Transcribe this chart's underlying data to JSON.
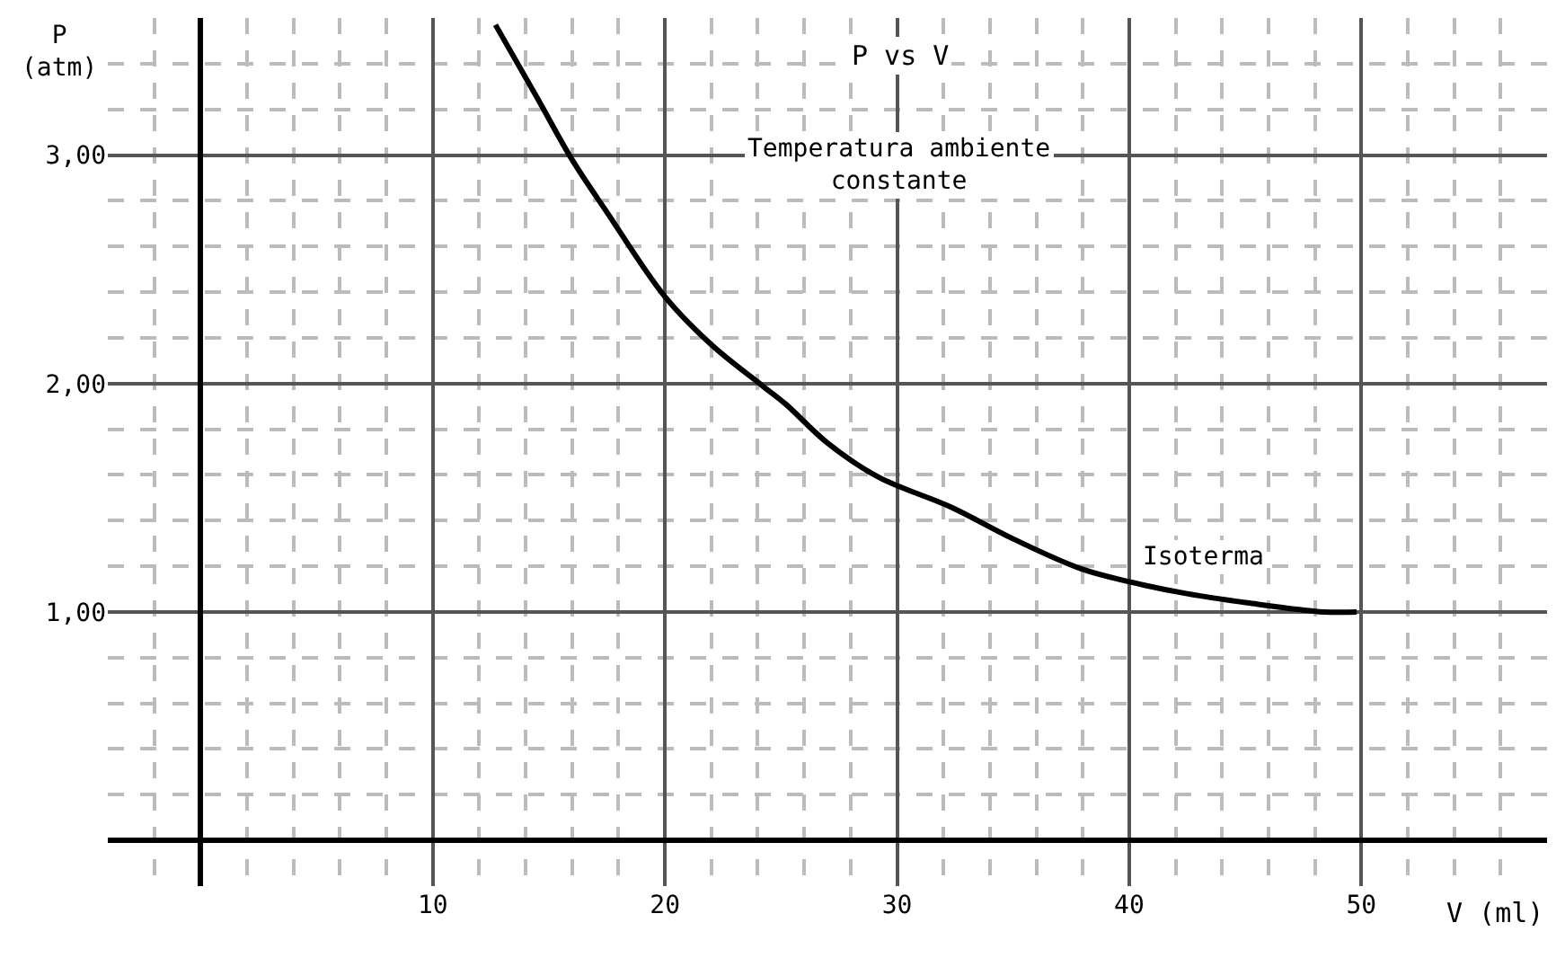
{
  "chart_data": {
    "type": "line",
    "title": "P vs V",
    "subtitle": "Temperatura ambiente\nconstante",
    "xlabel": "V (ml)",
    "ylabel": "P\n(atm)",
    "x": [
      12.7,
      14.5,
      16.0,
      17.5,
      20.0,
      22.0,
      24.2,
      25.2,
      27.0,
      29.2,
      32.3,
      35.0,
      37.9,
      40.1,
      42.5,
      45.1,
      48.4,
      49.8
    ],
    "series": [
      {
        "color": "#000000",
        "values": [
          3.57,
          3.25,
          2.98,
          2.75,
          2.38,
          2.17,
          1.99,
          1.91,
          1.74,
          1.59,
          1.46,
          1.32,
          1.19,
          1.13,
          1.08,
          1.04,
          1.0,
          1.0
        ]
      }
    ],
    "annotations": [
      {
        "text": "Isoterma",
        "x": 40.1,
        "y": 1.13
      }
    ],
    "xlim": [
      -4,
      58
    ],
    "ylim": [
      -0.2,
      3.6
    ],
    "xticks": [
      10,
      20,
      30,
      40,
      50
    ],
    "yticks": [
      {
        "value": 1,
        "label": "1,00"
      },
      {
        "value": 2,
        "label": "2,00"
      },
      {
        "value": 3,
        "label": "3,00"
      }
    ],
    "grid": true,
    "marker": "none",
    "line_style": "solid"
  }
}
